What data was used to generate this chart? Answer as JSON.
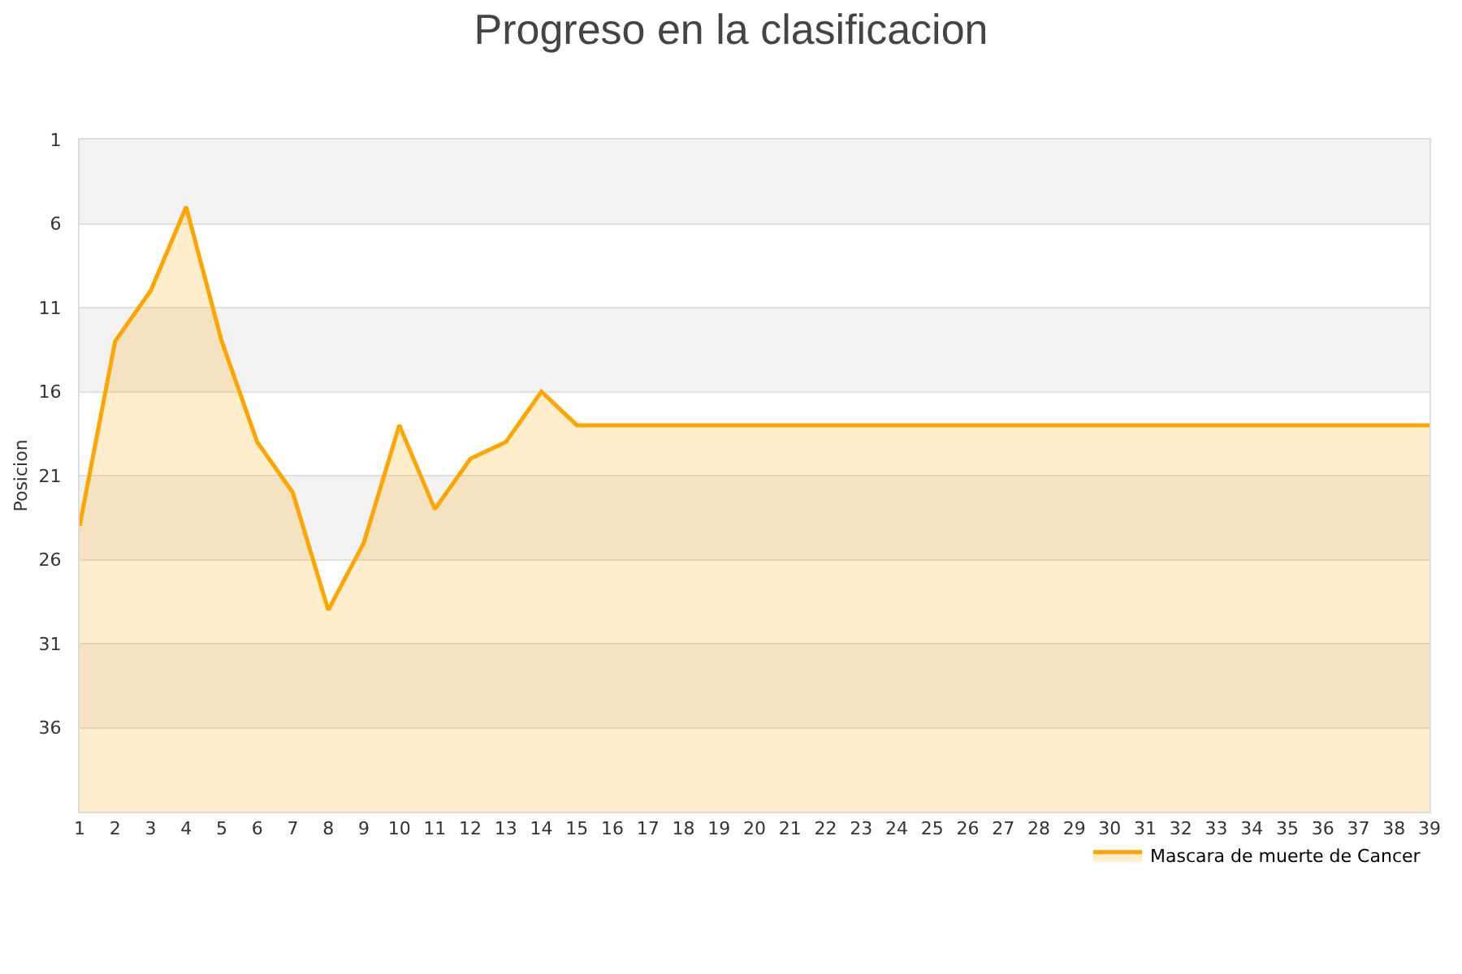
{
  "chart_data": {
    "type": "area",
    "title": "Progreso en la clasificacion",
    "ylabel": "Posicion",
    "x": [
      1,
      2,
      3,
      4,
      5,
      6,
      7,
      8,
      9,
      10,
      11,
      12,
      13,
      14,
      15,
      16,
      17,
      18,
      19,
      20,
      21,
      22,
      23,
      24,
      25,
      26,
      27,
      28,
      29,
      30,
      31,
      32,
      33,
      34,
      35,
      36,
      37,
      38,
      39
    ],
    "series": [
      {
        "name": "Mascara de muerte de Cancer",
        "color": "#ffa500",
        "values": [
          24,
          13,
          10,
          5,
          13,
          19,
          22,
          29,
          25,
          18,
          23,
          20,
          19,
          16,
          18,
          18,
          18,
          18,
          18,
          18,
          18,
          18,
          18,
          18,
          18,
          18,
          18,
          18,
          18,
          18,
          18,
          18,
          18,
          18,
          18,
          18,
          18,
          18,
          18
        ]
      }
    ],
    "xlim": [
      1,
      39
    ],
    "xticks": [
      1,
      2,
      3,
      4,
      5,
      6,
      7,
      8,
      9,
      10,
      11,
      12,
      13,
      14,
      15,
      16,
      17,
      18,
      19,
      20,
      21,
      22,
      23,
      24,
      25,
      26,
      27,
      28,
      29,
      30,
      31,
      32,
      33,
      34,
      35,
      36,
      37,
      38,
      39
    ],
    "ylim": [
      41,
      1
    ],
    "yticks": [
      1,
      6,
      11,
      16,
      21,
      26,
      31,
      36
    ],
    "bands": [
      {
        "axis": "y",
        "from": 1,
        "to": 6,
        "color": "#f2f2f2"
      },
      {
        "axis": "y",
        "from": 11,
        "to": 16,
        "color": "#f2f2f2"
      },
      {
        "axis": "y",
        "from": 21,
        "to": 26,
        "color": "#f2f2f2"
      },
      {
        "axis": "y",
        "from": 31,
        "to": 36,
        "color": "#f2f2f2"
      }
    ],
    "grid": "y",
    "legend": "bottom right",
    "marker": "none",
    "line_style": "solid"
  }
}
